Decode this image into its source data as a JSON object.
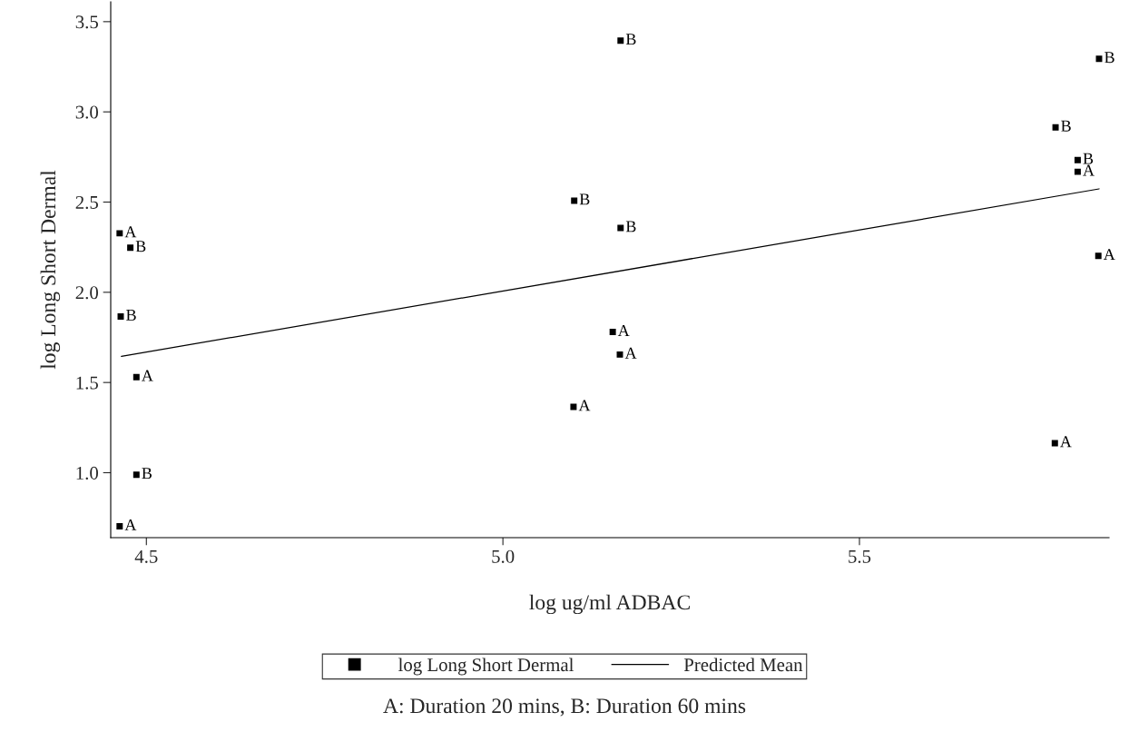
{
  "chart_data": {
    "type": "scatter",
    "xlabel": "log ug/ml ADBAC",
    "ylabel": "log Long Short Dermal",
    "xlim": [
      4.45,
      5.85
    ],
    "ylim": [
      0.64,
      3.61
    ],
    "xticks": [
      {
        "value": 4.5,
        "label": "4.5"
      },
      {
        "value": 5.0,
        "label": "5.0"
      },
      {
        "value": 5.5,
        "label": "5.5"
      }
    ],
    "yticks": [
      {
        "value": 1.0,
        "label": "1.0"
      },
      {
        "value": 1.5,
        "label": "1.5"
      },
      {
        "value": 2.0,
        "label": "2.0"
      },
      {
        "value": 2.5,
        "label": "2.5"
      },
      {
        "value": 3.0,
        "label": "3.0"
      },
      {
        "value": 3.5,
        "label": "3.5"
      }
    ],
    "grid": false,
    "legend": "bottom",
    "series": [
      {
        "name": "log Long Short Dermal",
        "marker": "square",
        "color": "#000000",
        "x": [
          4.4625,
          4.4775,
          4.464,
          4.486,
          4.486,
          4.4625,
          5.1,
          5.099,
          5.165,
          5.165,
          5.154,
          5.164,
          5.775,
          5.774,
          5.806,
          5.806,
          5.836,
          5.835
        ],
        "values": [
          2.327,
          2.247,
          1.866,
          1.53,
          0.989,
          0.703,
          2.508,
          1.365,
          3.395,
          2.357,
          1.78,
          1.655,
          2.914,
          1.164,
          2.733,
          2.668,
          3.294,
          2.202
        ],
        "value_labels": [
          "A",
          "B",
          "B",
          "A",
          "B",
          "A",
          "B",
          "A",
          "B",
          "B",
          "A",
          "A",
          "B",
          "A",
          "B",
          "A",
          "B",
          "A"
        ]
      },
      {
        "name": "Predicted Mean",
        "type": "line",
        "color": "#000000",
        "line_style": "solid",
        "x": [
          4.465,
          5.836
        ],
        "values": [
          1.645,
          2.573
        ]
      }
    ],
    "annotations": [
      "A: Duration 20 mins, B: Duration 60 mins"
    ]
  }
}
